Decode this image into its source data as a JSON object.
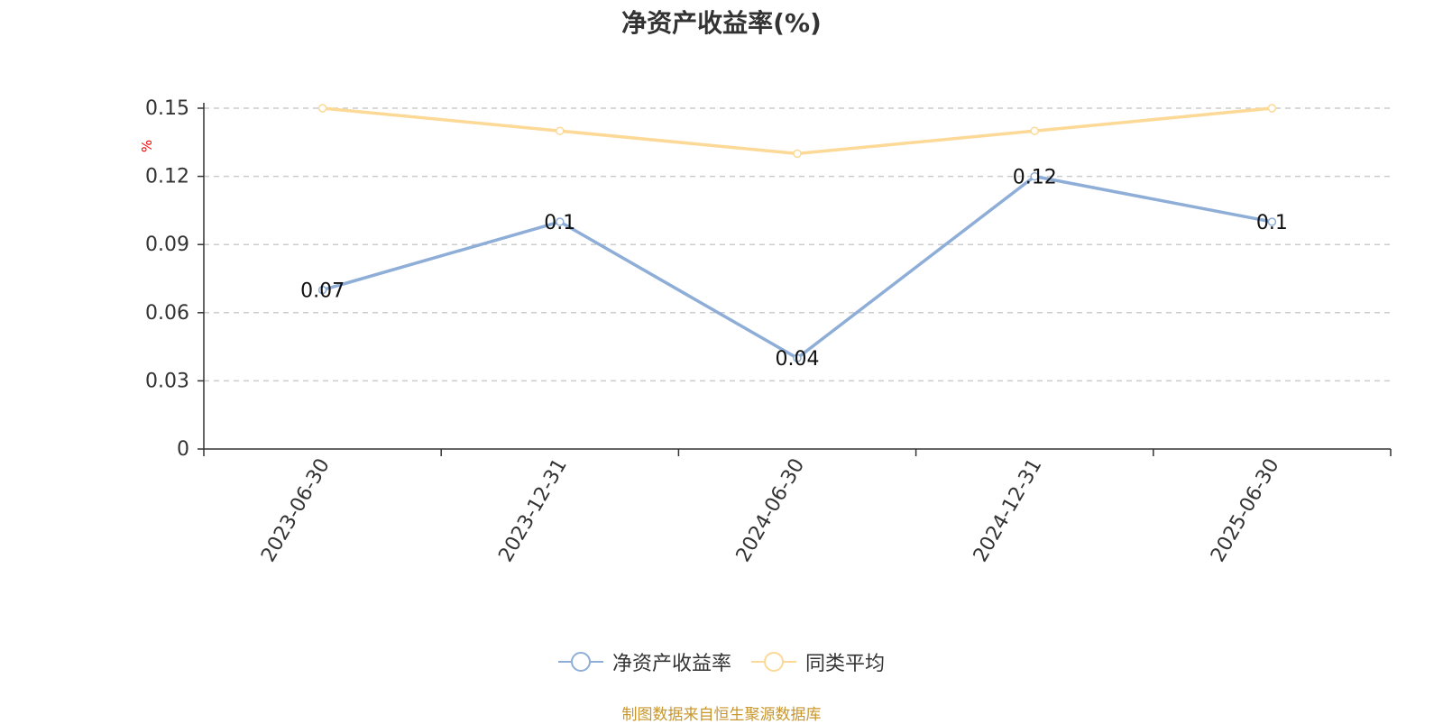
{
  "colors": {
    "series1": "#8eaed8",
    "series2": "#fcd996",
    "source": "#c8962d",
    "unit": "#ff0000"
  },
  "chart_data": {
    "type": "line",
    "title": "净资产收益率(%)",
    "ylabel": "%",
    "x": [
      "2023-06-30",
      "2023-12-31",
      "2024-06-30",
      "2024-12-31",
      "2025-06-30"
    ],
    "yticks": [
      "0",
      "0.03",
      "0.06",
      "0.09",
      "0.12",
      "0.15"
    ],
    "ylim": [
      0,
      0.15
    ],
    "grid": true,
    "legend_position": "bottom",
    "series": [
      {
        "name": "净资产收益率",
        "values": [
          0.07,
          0.1,
          0.04,
          0.12,
          0.1
        ],
        "data_labels": [
          "0.07",
          "0.1",
          "0.04",
          "0.12",
          "0.1"
        ]
      },
      {
        "name": "同类平均",
        "values": [
          0.15,
          0.14,
          0.13,
          0.14,
          0.15
        ]
      }
    ]
  },
  "footer": {
    "source": "制图数据来自恒生聚源数据库"
  }
}
